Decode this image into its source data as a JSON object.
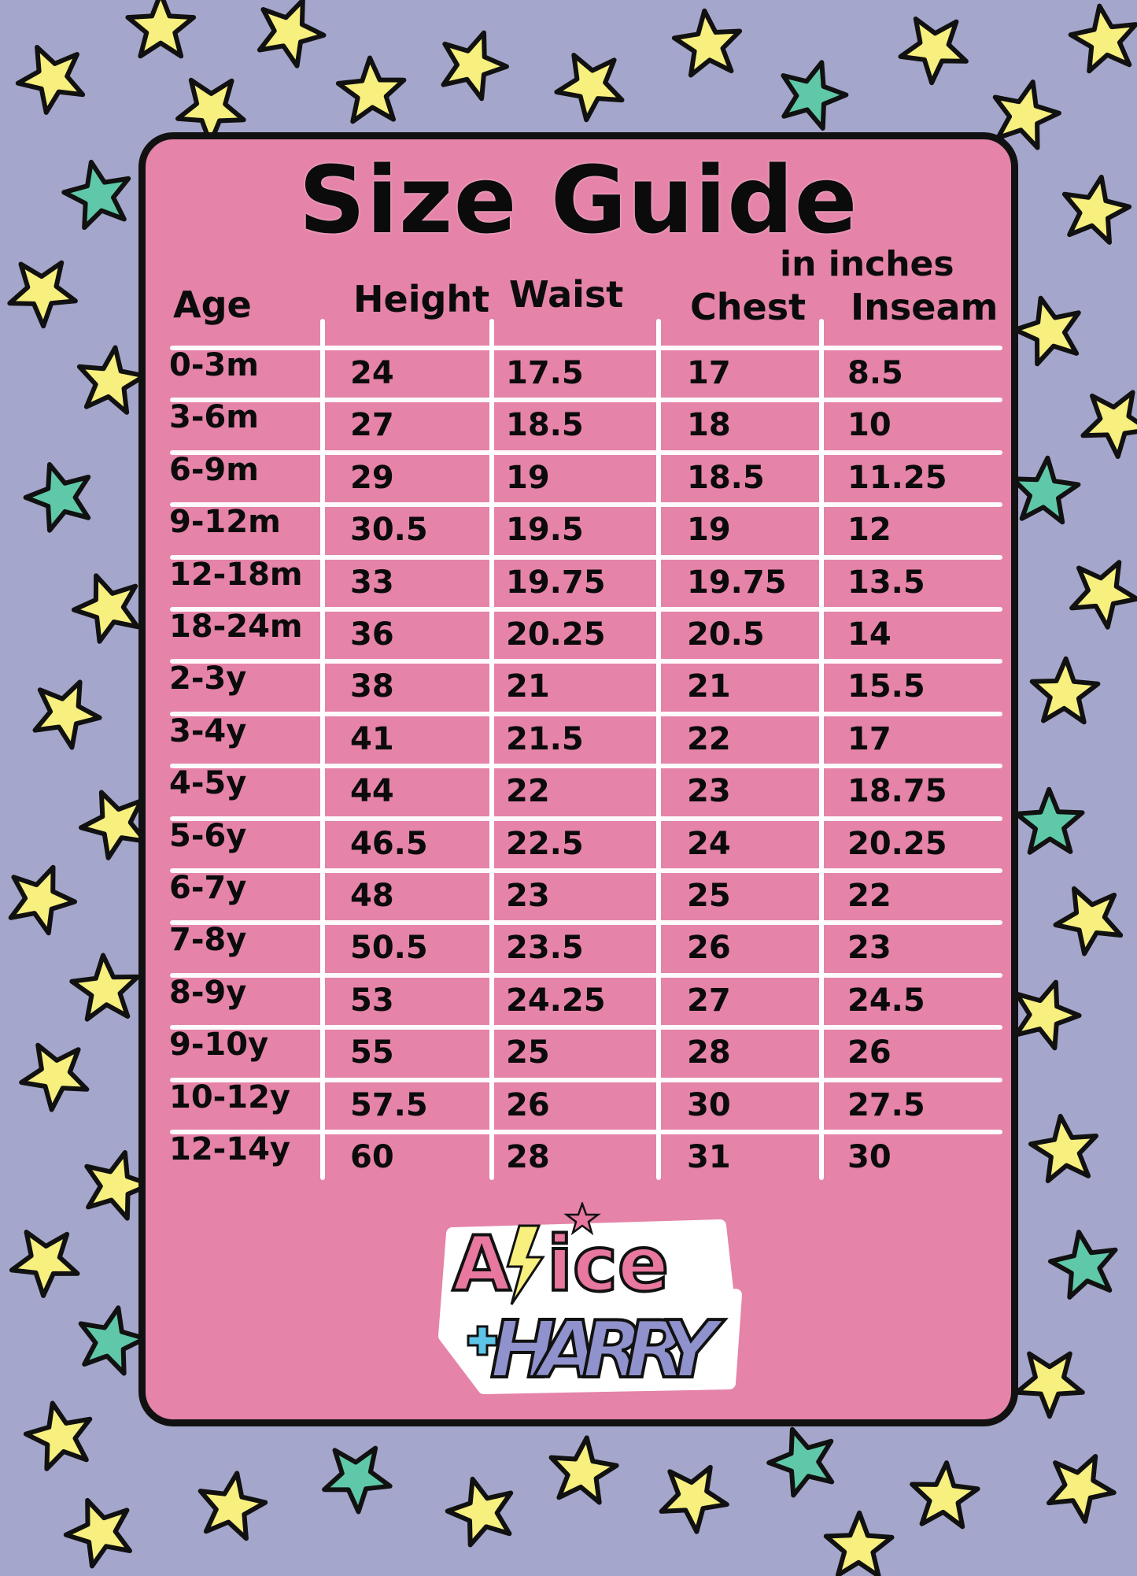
{
  "title": "Size Guide",
  "units": "in inches",
  "colors": {
    "background": "#a5a6cb",
    "card": "#e583a9",
    "star_yellow": "#f7ef7e",
    "star_green": "#5fc8a8",
    "lines": "#ffffff"
  },
  "table": {
    "columns": [
      "Age",
      "Height",
      "Waist",
      "Chest",
      "Inseam"
    ],
    "rows": [
      [
        "0-3m",
        "24",
        "17.5",
        "17",
        "8.5"
      ],
      [
        "3-6m",
        "27",
        "18.5",
        "18",
        "10"
      ],
      [
        "6-9m",
        "29",
        "19",
        "18.5",
        "11.25"
      ],
      [
        "9-12m",
        "30.5",
        "19.5",
        "19",
        "12"
      ],
      [
        "12-18m",
        "33",
        "19.75",
        "19.75",
        "13.5"
      ],
      [
        "18-24m",
        "36",
        "20.25",
        "20.5",
        "14"
      ],
      [
        "2-3y",
        "38",
        "21",
        "21",
        "15.5"
      ],
      [
        "3-4y",
        "41",
        "21.5",
        "22",
        "17"
      ],
      [
        "4-5y",
        "44",
        "22",
        "23",
        "18.75"
      ],
      [
        "5-6y",
        "46.5",
        "22.5",
        "24",
        "20.25"
      ],
      [
        "6-7y",
        "48",
        "23",
        "25",
        "22"
      ],
      [
        "7-8y",
        "50.5",
        "23.5",
        "26",
        "23"
      ],
      [
        "8-9y",
        "53",
        "24.25",
        "27",
        "24.5"
      ],
      [
        "9-10y",
        "55",
        "25",
        "28",
        "26"
      ],
      [
        "10-12y",
        "57.5",
        "26",
        "30",
        "27.5"
      ],
      [
        "12-14y",
        "60",
        "28",
        "31",
        "30"
      ]
    ]
  },
  "logo": {
    "line1": "Alice",
    "line2": "+HARRY"
  }
}
